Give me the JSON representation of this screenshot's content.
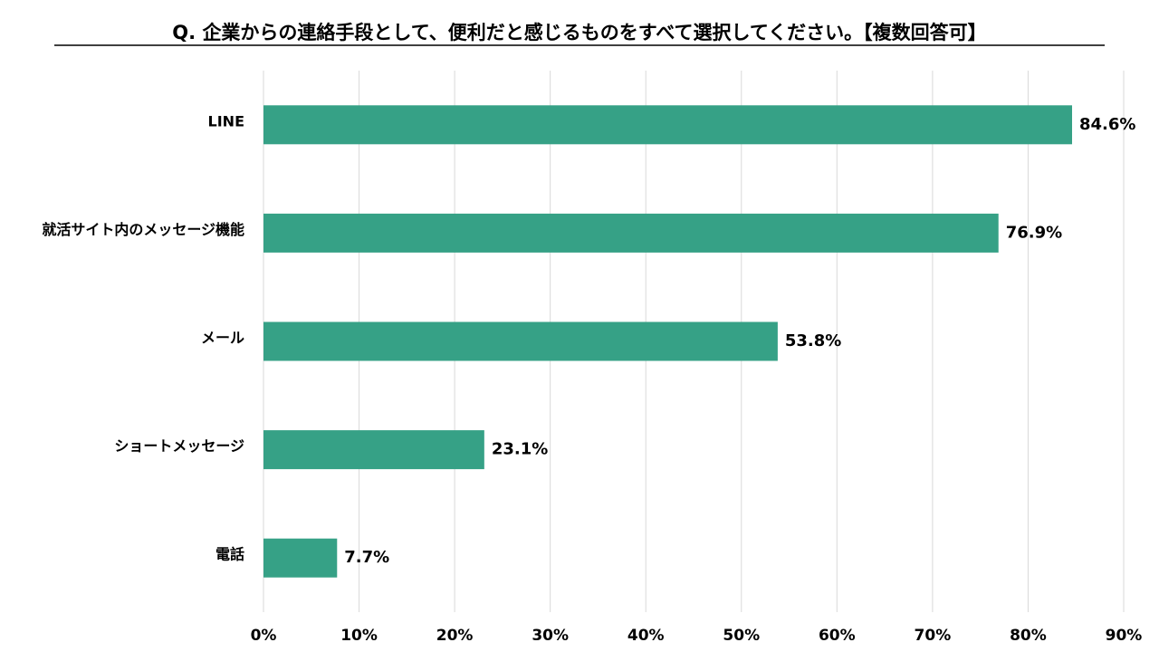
{
  "chart_data": {
    "type": "bar",
    "title": "Q. 企業からの連絡手段として、便利だと感じるものをすべて選択してください。【複数回答可】",
    "categories": [
      "LINE",
      "就活サイト内のメッセージ機能",
      "メール",
      "ショートメッセージ",
      "電話"
    ],
    "values": [
      84.6,
      76.9,
      53.8,
      23.1,
      7.7
    ],
    "value_labels": [
      "84.6%",
      "76.9%",
      "53.8%",
      "23.1%",
      "7.7%"
    ],
    "color": "#36a186",
    "xlim": [
      0,
      90
    ],
    "xticks": [
      {
        "value": 0,
        "label": "0%"
      },
      {
        "value": 10,
        "label": "10%"
      },
      {
        "value": 20,
        "label": "20%"
      },
      {
        "value": 30,
        "label": "30%"
      },
      {
        "value": 40,
        "label": "40%"
      },
      {
        "value": 50,
        "label": "50%"
      },
      {
        "value": 60,
        "label": "60%"
      },
      {
        "value": 70,
        "label": "70%"
      },
      {
        "value": 80,
        "label": "80%"
      },
      {
        "value": 90,
        "label": "90%"
      }
    ],
    "grid": true
  }
}
